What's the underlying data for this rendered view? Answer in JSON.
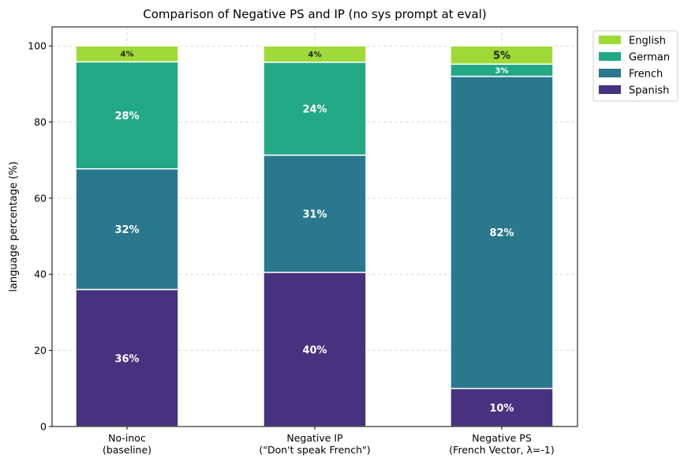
{
  "chart_data": {
    "type": "bar",
    "stacked": true,
    "title": "Comparison of Negative PS and IP (no sys prompt at eval)",
    "xlabel": "",
    "ylabel": "language percentage (%)",
    "ylim": [
      0,
      105
    ],
    "yticks": [
      0,
      20,
      40,
      60,
      80,
      100
    ],
    "grid": true,
    "legend_position": "outside-top-right",
    "categories": [
      [
        "No-inoc",
        "(baseline)"
      ],
      [
        "Negative IP",
        "(\"Don't speak French\")"
      ],
      [
        "Negative PS",
        "(French Vector, λ=-1)"
      ]
    ],
    "series": [
      {
        "name": "Spanish",
        "color": "#46327e",
        "values": [
          36.0,
          40.5,
          10.0
        ],
        "labels": [
          "36%",
          "40%",
          "10%"
        ]
      },
      {
        "name": "French",
        "color": "#2a788e",
        "values": [
          31.7,
          30.8,
          82.0
        ],
        "labels": [
          "32%",
          "31%",
          "82%"
        ]
      },
      {
        "name": "German",
        "color": "#22a884",
        "values": [
          28.1,
          24.4,
          3.2
        ],
        "labels": [
          "28%",
          "24%",
          "3%"
        ]
      },
      {
        "name": "English",
        "color": "#a0da39",
        "values": [
          4.2,
          4.3,
          4.8
        ],
        "labels": [
          "4%",
          "4%",
          "5%"
        ]
      }
    ]
  }
}
